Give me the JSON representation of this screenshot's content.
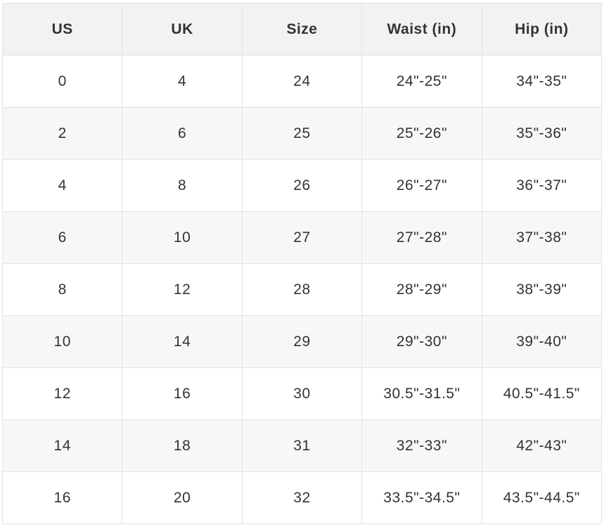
{
  "table": {
    "header": [
      "US",
      "UK",
      "Size",
      "Waist (in)",
      "Hip (in)"
    ],
    "rows": [
      [
        "0",
        "4",
        "24",
        "24\"-25\"",
        "34\"-35\""
      ],
      [
        "2",
        "6",
        "25",
        "25\"-26\"",
        "35\"-36\""
      ],
      [
        "4",
        "8",
        "26",
        "26\"-27\"",
        "36\"-37\""
      ],
      [
        "6",
        "10",
        "27",
        "27\"-28\"",
        "37\"-38\""
      ],
      [
        "8",
        "12",
        "28",
        "28\"-29\"",
        "38\"-39\""
      ],
      [
        "10",
        "14",
        "29",
        "29\"-30\"",
        "39\"-40\""
      ],
      [
        "12",
        "16",
        "30",
        "30.5\"-31.5\"",
        "40.5\"-41.5\""
      ],
      [
        "14",
        "18",
        "31",
        "32\"-33\"",
        "42\"-43\""
      ],
      [
        "16",
        "20",
        "32",
        "33.5\"-34.5\"",
        "43.5\"-44.5\""
      ]
    ]
  }
}
